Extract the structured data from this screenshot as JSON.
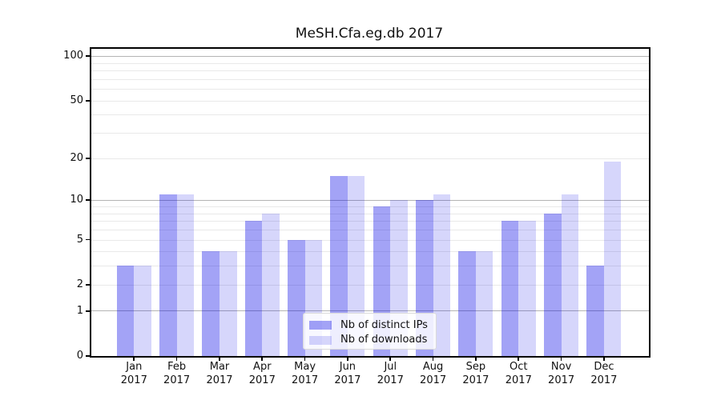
{
  "chart_data": {
    "type": "bar",
    "title": "MeSH.Cfa.eg.db 2017",
    "x": [
      "Jan",
      "Feb",
      "Mar",
      "Apr",
      "May",
      "Jun",
      "Jul",
      "Aug",
      "Sep",
      "Oct",
      "Nov",
      "Dec"
    ],
    "x_year": "2017",
    "series": [
      {
        "name": "Nb of distinct IPs",
        "color": "rgba(0,0,230,0.36)",
        "values": [
          3,
          11,
          4,
          7,
          5,
          15,
          9,
          10,
          4,
          7,
          8,
          3
        ]
      },
      {
        "name": "Nb of downloads",
        "color": "rgba(0,0,230,0.16)",
        "values": [
          3,
          11,
          4,
          8,
          5,
          15,
          10,
          11,
          4,
          7,
          11,
          19
        ]
      }
    ],
    "yscale": "log1p",
    "ylim": [
      0,
      113
    ],
    "yticks": [
      0,
      1,
      2,
      5,
      10,
      20,
      50,
      100
    ],
    "gridlines": {
      "major": [
        1,
        10,
        100
      ],
      "minor": [
        2,
        3,
        4,
        5,
        6,
        7,
        8,
        9,
        20,
        30,
        40,
        50,
        60,
        70,
        80,
        90
      ]
    },
    "grid": true,
    "legend_position": "lower center",
    "colors": {
      "grid_major": "#b4b4b4",
      "grid_minor": "#e9e9e9",
      "axis": "#000000",
      "background": "#ffffff"
    }
  }
}
